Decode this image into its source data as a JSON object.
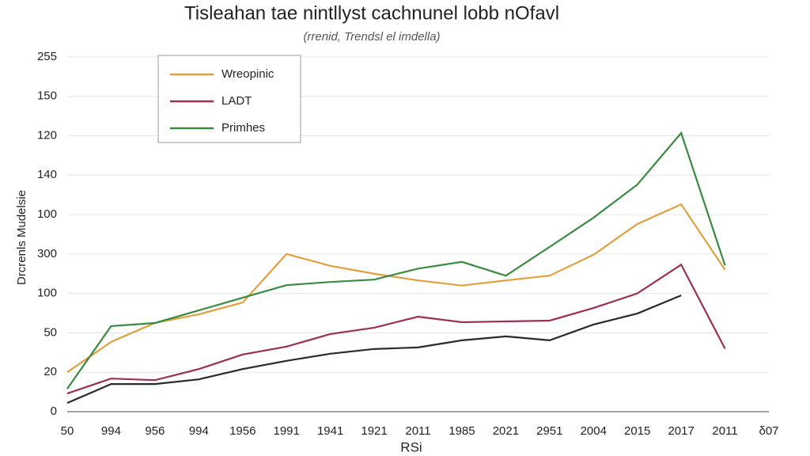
{
  "chart_data": {
    "type": "line",
    "title": "Tisleahan tae nintllyst cachnunel lobb nOfavl",
    "subtitle": "(rrenid, Trendsl el imdella)",
    "x_label": "RSi",
    "y_label": "Drcrenls Mudelsie",
    "categories": [
      "50",
      "994",
      "956",
      "994",
      "1956",
      "1991",
      "1941",
      "1921",
      "2011",
      "1985",
      "2021",
      "2951",
      "2004",
      "2015",
      "2017",
      "2011",
      "δ07"
    ],
    "ylim": [
      0,
      9.4
    ],
    "yticks": [
      0,
      {
        "value": 1,
        "label": "20"
      },
      {
        "value": 2,
        "label": "50"
      },
      {
        "value": 3,
        "label": "100"
      },
      {
        "value": 4,
        "label": "300"
      },
      {
        "value": 5,
        "label": "100"
      },
      {
        "value": 6,
        "label": "140"
      },
      {
        "value": 7,
        "label": "120"
      },
      {
        "value": 8,
        "label": "150"
      },
      {
        "value": 9,
        "label": "255"
      }
    ],
    "grid": true,
    "legend": "upper left",
    "series": [
      {
        "name": "Wreopinic",
        "color": "#e0a040",
        "values": [
          1.0,
          1.77,
          2.25,
          2.47,
          2.77,
          4.0,
          3.7,
          3.5,
          3.33,
          3.2,
          3.33,
          3.45,
          3.98,
          4.76,
          5.26,
          3.6,
          null
        ]
      },
      {
        "name": "LADT",
        "color": "#9c3050",
        "values": [
          0.46,
          0.84,
          0.8,
          1.08,
          1.45,
          1.65,
          1.97,
          2.13,
          2.41,
          2.27,
          2.29,
          2.31,
          2.63,
          3.0,
          3.73,
          1.6,
          null
        ]
      },
      {
        "name": "Primhes",
        "color": "#3a8a40",
        "values": [
          0.58,
          2.17,
          2.25,
          2.57,
          2.89,
          3.21,
          3.29,
          3.35,
          3.63,
          3.8,
          3.45,
          4.18,
          4.92,
          5.76,
          7.07,
          3.71,
          null
        ]
      },
      {
        "color": "#2a2a2a",
        "values": [
          0.22,
          0.7,
          0.7,
          0.82,
          1.08,
          1.29,
          1.47,
          1.59,
          1.63,
          1.81,
          1.91,
          1.81,
          2.21,
          2.49,
          2.95,
          null,
          null
        ]
      }
    ]
  }
}
